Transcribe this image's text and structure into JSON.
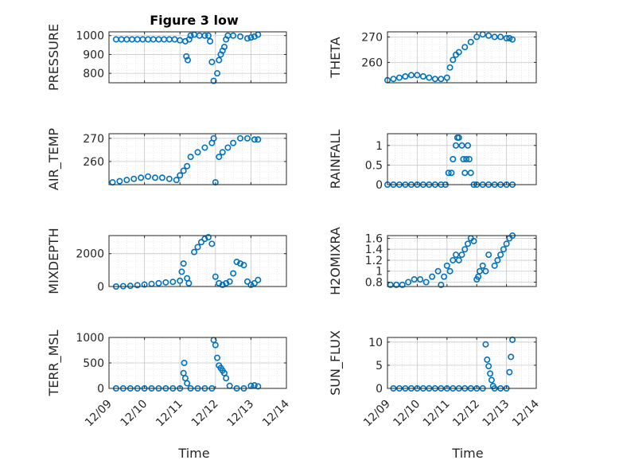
{
  "figure": {
    "title": "Figure 3 low",
    "marker_color": "#0072BD",
    "xlabel": "Time",
    "x_ticks": [
      "12/09",
      "12/10",
      "12/11",
      "12/12",
      "12/13",
      "12/14"
    ]
  },
  "chart_data": [
    {
      "type": "scatter",
      "ylabel": "PRESSURE",
      "ylim": [
        750,
        1020
      ],
      "yticks": [
        800,
        900,
        1000
      ],
      "xlim": [
        9,
        14
      ],
      "grid": true,
      "x": [
        9.2,
        9.35,
        9.5,
        9.65,
        9.8,
        9.95,
        10.1,
        10.25,
        10.4,
        10.55,
        10.7,
        10.85,
        11.0,
        11.15,
        11.18,
        11.22,
        11.26,
        11.3,
        11.4,
        11.55,
        11.7,
        11.8,
        11.85,
        11.9,
        11.95,
        12.05,
        12.1,
        12.15,
        12.2,
        12.25,
        12.3,
        12.35,
        12.5,
        12.7,
        12.9,
        13.0,
        13.1,
        13.2
      ],
      "y": [
        980,
        980,
        980,
        980,
        980,
        980,
        980,
        980,
        980,
        980,
        980,
        980,
        975,
        970,
        890,
        870,
        980,
        1000,
        1005,
        1000,
        1000,
        1000,
        970,
        860,
        760,
        800,
        870,
        900,
        920,
        940,
        980,
        1000,
        1000,
        995,
        985,
        990,
        995,
        1005
      ]
    },
    {
      "type": "scatter",
      "ylabel": "THETA",
      "ylim": [
        252,
        272
      ],
      "yticks": [
        260,
        270
      ],
      "xlim": [
        9,
        14
      ],
      "grid": true,
      "x": [
        9.0,
        9.2,
        9.4,
        9.6,
        9.8,
        10.0,
        10.2,
        10.4,
        10.6,
        10.8,
        11.0,
        11.1,
        11.2,
        11.3,
        11.4,
        11.6,
        11.8,
        12.0,
        12.2,
        12.4,
        12.6,
        12.8,
        13.0,
        13.1,
        13.2
      ],
      "y": [
        253,
        253.5,
        254,
        254.5,
        255,
        255,
        254.5,
        254,
        253.5,
        253.5,
        254,
        258,
        261,
        263,
        264,
        266,
        268,
        270,
        271,
        270.5,
        270,
        270,
        269.5,
        269.5,
        269
      ]
    },
    {
      "type": "scatter",
      "ylabel": "AIR_TEMP",
      "ylim": [
        250,
        272
      ],
      "yticks": [
        260,
        270
      ],
      "xlim": [
        9,
        14
      ],
      "grid": true,
      "x": [
        9.1,
        9.3,
        9.5,
        9.7,
        9.9,
        10.1,
        10.3,
        10.5,
        10.7,
        10.9,
        11.0,
        11.1,
        11.2,
        11.3,
        11.5,
        11.7,
        11.9,
        11.95,
        12.0,
        12.1,
        12.2,
        12.35,
        12.5,
        12.7,
        12.9,
        13.1,
        13.2
      ],
      "y": [
        251,
        251.5,
        252,
        252.5,
        253,
        253.5,
        253,
        253,
        252.5,
        252,
        254,
        256,
        258,
        262,
        264,
        266,
        268,
        270,
        251,
        262,
        264,
        266,
        268,
        270,
        270,
        269.5,
        269.5
      ]
    },
    {
      "type": "scatter",
      "ylabel": "RAINFALL",
      "ylim": [
        0,
        1.3
      ],
      "yticks": [
        0,
        0.5,
        1
      ],
      "xlim": [
        9,
        14
      ],
      "grid": true,
      "x": [
        9.0,
        9.2,
        9.4,
        9.6,
        9.8,
        10.0,
        10.2,
        10.4,
        10.6,
        10.8,
        10.95,
        11.05,
        11.15,
        11.2,
        11.3,
        11.35,
        11.4,
        11.5,
        11.55,
        11.6,
        11.65,
        11.7,
        11.75,
        11.8,
        11.9,
        12.0,
        12.2,
        12.4,
        12.6,
        12.8,
        13.0,
        13.2
      ],
      "y": [
        0,
        0,
        0,
        0,
        0,
        0,
        0,
        0,
        0,
        0,
        0,
        0.3,
        0.3,
        0.65,
        1.0,
        1.2,
        1.2,
        1.0,
        0.65,
        0.3,
        0.65,
        1.0,
        0.65,
        0.3,
        0,
        0,
        0,
        0,
        0,
        0,
        0,
        0
      ]
    },
    {
      "type": "scatter",
      "ylabel": "MIXDEPTH",
      "ylim": [
        0,
        3100
      ],
      "yticks": [
        0,
        2000
      ],
      "xlim": [
        9,
        14
      ],
      "grid": true,
      "x": [
        9.2,
        9.4,
        9.6,
        9.8,
        10.0,
        10.2,
        10.4,
        10.6,
        10.8,
        11.0,
        11.05,
        11.1,
        11.2,
        11.25,
        11.4,
        11.5,
        11.6,
        11.7,
        11.8,
        11.9,
        12.0,
        12.1,
        12.2,
        12.3,
        12.4,
        12.5,
        12.6,
        12.7,
        12.8,
        12.9,
        13.0,
        13.1,
        13.2
      ],
      "y": [
        0,
        20,
        40,
        80,
        120,
        160,
        200,
        250,
        280,
        350,
        900,
        1400,
        500,
        200,
        2100,
        2400,
        2700,
        2900,
        3000,
        2600,
        600,
        200,
        100,
        200,
        300,
        800,
        1500,
        1400,
        1300,
        300,
        100,
        200,
        400
      ]
    },
    {
      "type": "scatter",
      "ylabel": "H2OMIXRA",
      "ylim": [
        0.72,
        1.65
      ],
      "yticks": [
        0.8,
        1,
        1.2,
        1.4,
        1.6
      ],
      "xlim": [
        9,
        14
      ],
      "grid": true,
      "x": [
        9.1,
        9.3,
        9.5,
        9.7,
        9.9,
        10.1,
        10.3,
        10.5,
        10.7,
        10.8,
        10.9,
        11.0,
        11.1,
        11.2,
        11.3,
        11.4,
        11.5,
        11.6,
        11.7,
        11.8,
        11.9,
        12.0,
        12.05,
        12.1,
        12.2,
        12.3,
        12.4,
        12.6,
        12.7,
        12.8,
        12.9,
        13.0,
        13.1,
        13.2
      ],
      "y": [
        0.75,
        0.75,
        0.75,
        0.8,
        0.85,
        0.85,
        0.8,
        0.9,
        1.0,
        0.75,
        0.9,
        1.1,
        1.0,
        1.2,
        1.3,
        1.2,
        1.3,
        1.4,
        1.5,
        1.6,
        1.55,
        0.85,
        0.9,
        1.0,
        1.1,
        1.0,
        1.3,
        1.1,
        1.2,
        1.3,
        1.4,
        1.5,
        1.6,
        1.65
      ]
    },
    {
      "type": "scatter",
      "ylabel": "TERR_MSL",
      "ylim": [
        0,
        1000
      ],
      "yticks": [
        0,
        500,
        1000
      ],
      "xlim": [
        9,
        14
      ],
      "grid": true,
      "x": [
        9.2,
        9.4,
        9.6,
        9.8,
        10.0,
        10.2,
        10.4,
        10.6,
        10.8,
        11.0,
        11.1,
        11.12,
        11.15,
        11.2,
        11.3,
        11.5,
        11.7,
        11.9,
        11.95,
        12.0,
        12.05,
        12.1,
        12.15,
        12.2,
        12.25,
        12.3,
        12.4,
        12.6,
        12.8,
        13.0,
        13.1,
        13.2
      ],
      "y": [
        0,
        0,
        0,
        0,
        0,
        0,
        0,
        0,
        0,
        0,
        300,
        500,
        200,
        100,
        0,
        0,
        0,
        0,
        950,
        850,
        600,
        450,
        400,
        350,
        300,
        200,
        50,
        0,
        0,
        50,
        60,
        40
      ]
    },
    {
      "type": "scatter",
      "ylabel": "SUN_FLUX",
      "ylim": [
        0,
        11
      ],
      "yticks": [
        0,
        5,
        10
      ],
      "xlim": [
        9,
        14
      ],
      "grid": true,
      "x": [
        9.2,
        9.4,
        9.6,
        9.8,
        10.0,
        10.2,
        10.4,
        10.6,
        10.8,
        11.0,
        11.2,
        11.4,
        11.6,
        11.8,
        12.0,
        12.2,
        12.3,
        12.35,
        12.4,
        12.45,
        12.5,
        12.55,
        12.6,
        12.8,
        13.0,
        13.1,
        13.15,
        13.2
      ],
      "y": [
        0,
        0,
        0,
        0,
        0,
        0,
        0,
        0,
        0,
        0,
        0,
        0,
        0,
        0,
        0,
        0,
        9.5,
        6.2,
        4.8,
        3.2,
        1.8,
        0.5,
        0,
        0,
        0,
        3.5,
        6.8,
        10.5
      ]
    }
  ]
}
